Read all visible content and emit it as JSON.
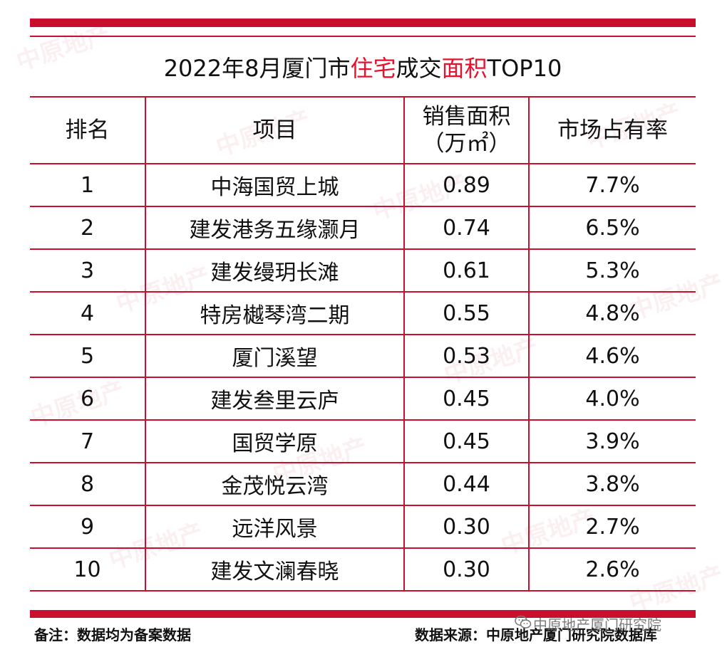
{
  "title": {
    "prefix": "2022年8月厦门市",
    "hl1": "住宅",
    "mid": "成交",
    "hl2": "面积",
    "suffix": "TOP10"
  },
  "table": {
    "headers": {
      "rank": "排名",
      "project": "项目",
      "area_line1": "销售面积",
      "area_line2": "（万㎡）",
      "share": "市场占有率"
    },
    "rows": [
      {
        "rank": "1",
        "project": "中海国贸上城",
        "area": "0.89",
        "share": "7.7%"
      },
      {
        "rank": "2",
        "project": "建发港务五缘灏月",
        "area": "0.74",
        "share": "6.5%"
      },
      {
        "rank": "3",
        "project": "建发缦玥长滩",
        "area": "0.61",
        "share": "5.3%"
      },
      {
        "rank": "4",
        "project": "特房樾琴湾二期",
        "area": "0.55",
        "share": "4.8%"
      },
      {
        "rank": "5",
        "project": "厦门溪望",
        "area": "0.53",
        "share": "4.6%"
      },
      {
        "rank": "6",
        "project": "建发叁里云庐",
        "area": "0.45",
        "share": "4.0%"
      },
      {
        "rank": "7",
        "project": "国贸学原",
        "area": "0.45",
        "share": "3.9%"
      },
      {
        "rank": "8",
        "project": "金茂悦云湾",
        "area": "0.44",
        "share": "3.8%"
      },
      {
        "rank": "9",
        "project": "远洋风景",
        "area": "0.30",
        "share": "2.7%"
      },
      {
        "rank": "10",
        "project": "建发文澜春晓",
        "area": "0.30",
        "share": "2.6%"
      }
    ]
  },
  "footer": {
    "note": "备注：数据均为备案数据",
    "source": "数据来源：中原地产厦门研究院数据库"
  },
  "credit": "中原地产厦门研究院",
  "watermark": "中原地产",
  "colors": {
    "accent": "#c8102e",
    "highlight": "#e8112d"
  }
}
